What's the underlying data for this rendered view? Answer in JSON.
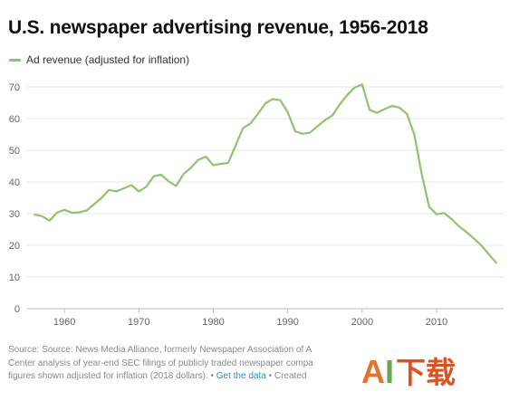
{
  "chart_data": {
    "type": "line",
    "title": "U.S. newspaper advertising revenue, 1956-2018",
    "xlabel": "",
    "ylabel": "",
    "xlim": [
      1955,
      2019
    ],
    "ylim": [
      0,
      70
    ],
    "x_ticks": [
      1960,
      1970,
      1980,
      1990,
      2000,
      2010
    ],
    "y_ticks": [
      0,
      10,
      20,
      30,
      40,
      50,
      60,
      70
    ],
    "grid": "horizontal",
    "legend_position": "top-left",
    "series": [
      {
        "name": "Ad revenue (adjusted for inflation)",
        "color": "#8fc36e",
        "x": [
          1956,
          1957,
          1958,
          1959,
          1960,
          1961,
          1962,
          1963,
          1964,
          1965,
          1966,
          1967,
          1968,
          1969,
          1970,
          1971,
          1972,
          1973,
          1974,
          1975,
          1976,
          1977,
          1978,
          1979,
          1980,
          1981,
          1982,
          1983,
          1984,
          1985,
          1986,
          1987,
          1988,
          1989,
          1990,
          1991,
          1992,
          1993,
          1994,
          1995,
          1996,
          1997,
          1998,
          1999,
          2000,
          2001,
          2002,
          2003,
          2004,
          2005,
          2006,
          2007,
          2008,
          2009,
          2010,
          2011,
          2012,
          2013,
          2014,
          2015,
          2016,
          2017,
          2018
        ],
        "values": [
          29.7,
          29.2,
          27.8,
          30.3,
          31.2,
          30.3,
          30.4,
          31.0,
          33.0,
          35.0,
          37.5,
          37.0,
          38.0,
          39.0,
          37.0,
          38.5,
          41.8,
          42.3,
          40.2,
          38.7,
          42.5,
          44.5,
          47.0,
          48.0,
          45.3,
          45.7,
          46.0,
          51.5,
          57.0,
          58.5,
          61.5,
          64.8,
          66.2,
          65.8,
          62.0,
          56.0,
          55.2,
          55.6,
          57.6,
          59.5,
          61.0,
          64.5,
          67.5,
          69.8,
          70.8,
          62.7,
          61.8,
          63.0,
          64.0,
          63.5,
          61.5,
          55.0,
          42.5,
          32.2,
          29.8,
          30.2,
          28.3,
          26.0,
          24.2,
          22.2,
          20.0,
          17.2,
          14.5
        ]
      }
    ]
  },
  "legend": {
    "label": "Ad revenue (adjusted for inflation)"
  },
  "footer": {
    "line1": "Source: Source: News Media Alliance, formerly Newspaper Association of A",
    "line2": "Center analysis of year-end SEC filings of publicly traded newspaper compa",
    "line3_prefix": "figures shown adjusted for inflation (2018 dollars). •",
    "get_data_link": "Get the data",
    "line3_suffix": "• Created"
  },
  "watermark": {
    "a": "A",
    "i": "I",
    "rest": "下载"
  }
}
